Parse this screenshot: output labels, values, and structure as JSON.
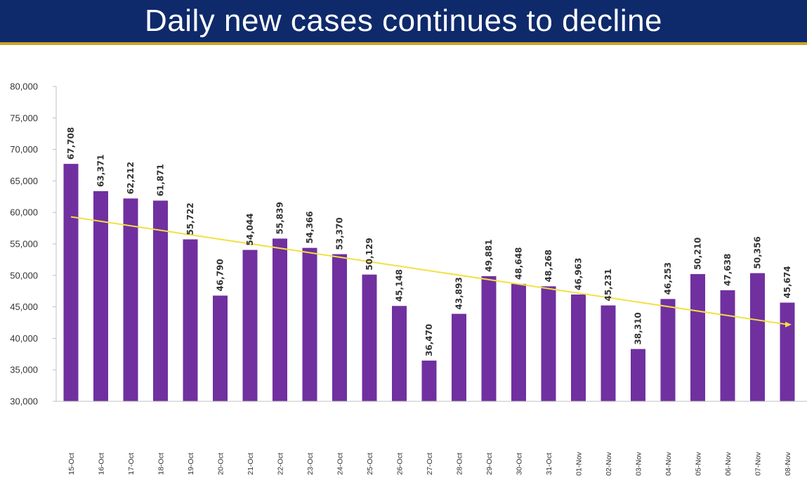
{
  "header": {
    "title": "Daily new cases continues to decline",
    "background_color": "#0f2a6b",
    "accent_color": "#c9a227"
  },
  "chart_data": {
    "type": "bar",
    "title": "Daily new cases continues to decline",
    "xlabel": "",
    "ylabel": "",
    "ylim": [
      30000,
      80000
    ],
    "y_ticks": [
      30000,
      35000,
      40000,
      45000,
      50000,
      55000,
      60000,
      65000,
      70000,
      75000,
      80000
    ],
    "y_tick_labels": [
      "30,000",
      "35,000",
      "40,000",
      "45,000",
      "50,000",
      "55,000",
      "60,000",
      "65,000",
      "70,000",
      "75,000",
      "80,000"
    ],
    "categories": [
      "15-Oct",
      "16-Oct",
      "17-Oct",
      "18-Oct",
      "19-Oct",
      "20-Oct",
      "21-Oct",
      "22-Oct",
      "23-Oct",
      "24-Oct",
      "25-Oct",
      "26-Oct",
      "27-Oct",
      "28-Oct",
      "29-Oct",
      "30-Oct",
      "31-Oct",
      "01-Nov",
      "02-Nov",
      "03-Nov",
      "04-Nov",
      "05-Nov",
      "06-Nov",
      "07-Nov",
      "08-Nov"
    ],
    "values": [
      67708,
      63371,
      62212,
      61871,
      55722,
      46790,
      54044,
      55839,
      54366,
      53370,
      50129,
      45148,
      36470,
      43893,
      49881,
      48648,
      48268,
      46963,
      45231,
      38310,
      46253,
      50210,
      47638,
      50356,
      45674
    ],
    "data_labels": [
      "67,708",
      "63,371",
      "62,212",
      "61,871",
      "55,722",
      "46,790",
      "54,044",
      "55,839",
      "54,366",
      "53,370",
      "50,129",
      "45,148",
      "36,470",
      "43,893",
      "49,881",
      "48,648",
      "48,268",
      "46,963",
      "45,231",
      "38,310",
      "46,253",
      "50,210",
      "47,638",
      "50,356",
      "45,674"
    ],
    "trendline": {
      "type": "linear",
      "start_value": 59300,
      "end_value": 42200
    },
    "bar_color": "#7030a0",
    "trendline_color": "#f2e043",
    "grid": false
  }
}
